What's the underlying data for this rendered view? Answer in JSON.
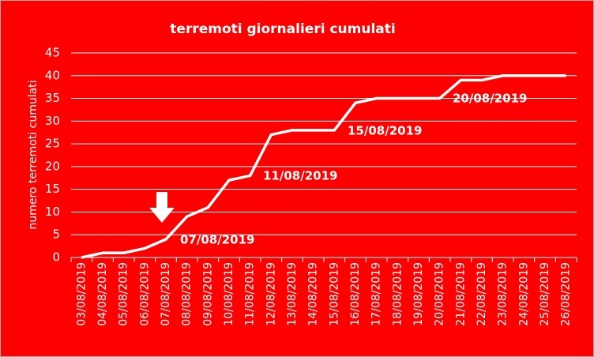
{
  "chart_data": {
    "type": "line",
    "title": "terremoti giornalieri cumulati",
    "y_label": "numero terremoti cumulati",
    "categories": [
      "03/08/2019",
      "04/08/2019",
      "05/08/2019",
      "06/08/2019",
      "07/08/2019",
      "08/08/2019",
      "09/08/2019",
      "10/08/2019",
      "11/08/2019",
      "12/08/2019",
      "13/08/2019",
      "14/08/2019",
      "15/08/2019",
      "16/08/2019",
      "17/08/2019",
      "18/08/2019",
      "19/08/2019",
      "20/08/2019",
      "21/08/2019",
      "22/08/2019",
      "23/08/2019",
      "24/08/2019",
      "25/08/2019",
      "26/08/2019"
    ],
    "values": [
      0,
      1,
      1,
      2,
      4,
      9,
      11,
      17,
      18,
      27,
      28,
      28,
      28,
      34,
      35,
      35,
      35,
      35,
      39,
      39,
      40,
      40,
      40,
      40
    ],
    "color": "#ffffff",
    "background": "#ff0000",
    "ylim": [
      0,
      45
    ],
    "yticks": [
      0,
      5,
      10,
      15,
      20,
      25,
      30,
      35,
      40,
      45
    ],
    "grid": true,
    "annotations": [
      "07/08/2019",
      "11/08/2019",
      "15/08/2019",
      "20/08/2019"
    ]
  }
}
